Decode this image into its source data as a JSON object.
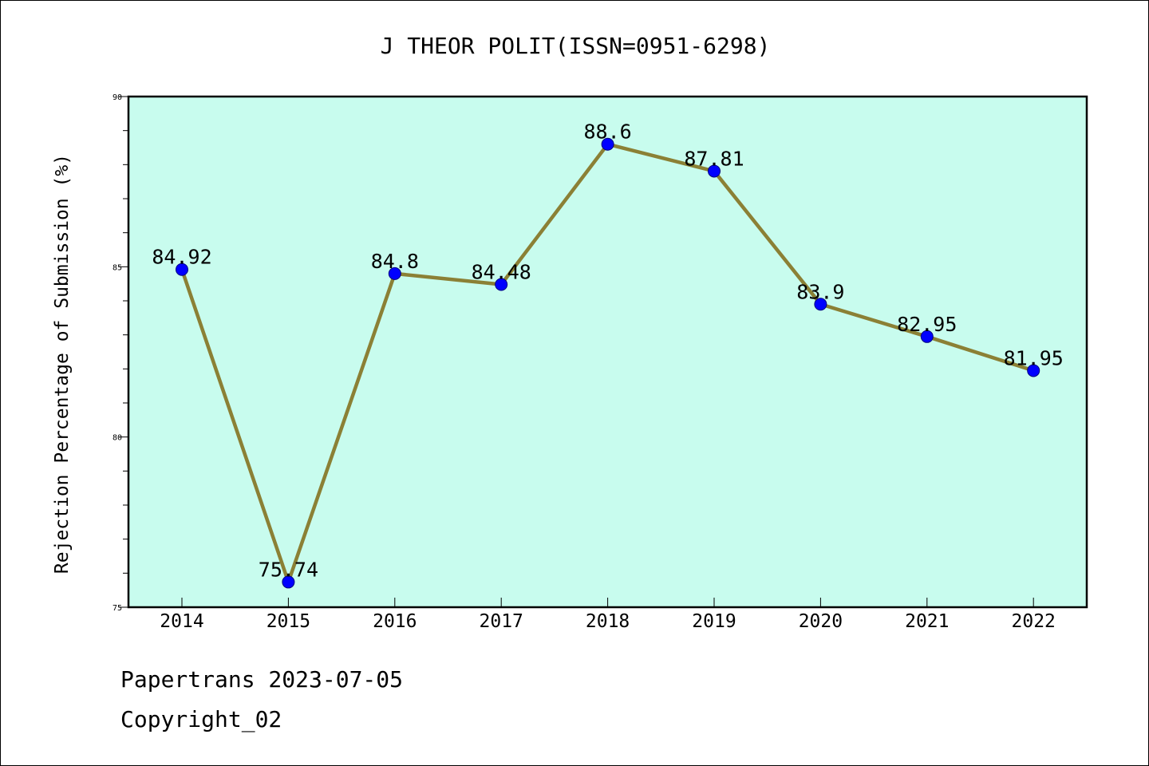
{
  "chart_data": {
    "type": "line",
    "title": "J THEOR POLIT(ISSN=0951-6298)",
    "xlabel": "",
    "ylabel": "Rejection Percentage of Submission (%)",
    "categories": [
      "2014",
      "2015",
      "2016",
      "2017",
      "2018",
      "2019",
      "2020",
      "2021",
      "2022"
    ],
    "series": [
      {
        "values": [
          84.92,
          75.74,
          84.8,
          84.48,
          88.6,
          87.81,
          83.9,
          82.95,
          81.95
        ],
        "labels": [
          "84.92",
          "75.74",
          "84.8",
          "84.48",
          "88.6",
          "87.81",
          "83.9",
          "82.95",
          "81.95"
        ]
      }
    ],
    "ylim": [
      75,
      90
    ],
    "yticks": [
      "75",
      "80",
      "85",
      "90"
    ],
    "grid": false,
    "legend": "none",
    "colors": {
      "plot_background": "#c8fcee",
      "line": "#8b8035",
      "marker": "#0000ff"
    }
  },
  "footer": {
    "line1": "Papertrans 2023-07-05",
    "line2": "Copyright_02"
  }
}
